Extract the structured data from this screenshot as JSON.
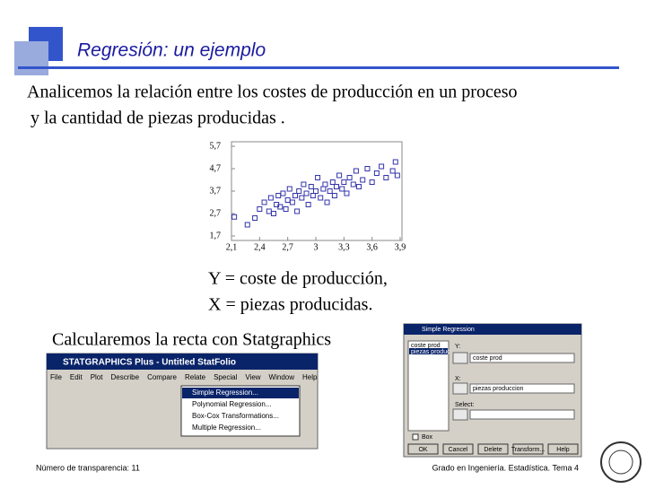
{
  "header": {
    "title": "Regresión: un ejemplo"
  },
  "body": {
    "intro_1": "Analicemos la relación entre los costes de producción en un proceso",
    "intro_2": "y la cantidad de piezas producidas .",
    "y_def": "Y = coste de producción,",
    "x_def": "X = piezas producidas.",
    "calc": "Calcularemos la recta con Statgraphics"
  },
  "chart_data": {
    "type": "scatter",
    "color": "#3333aa",
    "x": [
      2.13,
      2.27,
      2.35,
      2.4,
      2.45,
      2.5,
      2.52,
      2.55,
      2.58,
      2.6,
      2.62,
      2.65,
      2.68,
      2.7,
      2.72,
      2.75,
      2.78,
      2.8,
      2.82,
      2.85,
      2.87,
      2.9,
      2.92,
      2.95,
      2.97,
      3.0,
      3.02,
      3.05,
      3.08,
      3.1,
      3.12,
      3.15,
      3.18,
      3.2,
      3.22,
      3.25,
      3.28,
      3.3,
      3.33,
      3.36,
      3.4,
      3.43,
      3.46,
      3.5,
      3.55,
      3.6,
      3.65,
      3.7,
      3.75,
      3.82,
      3.85,
      3.87
    ],
    "values": [
      2.55,
      2.2,
      2.5,
      2.9,
      3.2,
      2.8,
      3.4,
      2.7,
      3.1,
      3.5,
      3.0,
      3.6,
      2.9,
      3.3,
      3.8,
      3.2,
      3.5,
      2.8,
      3.7,
      3.4,
      4.0,
      3.6,
      3.1,
      3.9,
      3.5,
      3.7,
      4.3,
      3.4,
      3.8,
      4.0,
      3.2,
      3.7,
      4.1,
      3.5,
      3.9,
      4.4,
      3.8,
      4.1,
      3.6,
      4.3,
      4.0,
      4.6,
      3.9,
      4.2,
      4.7,
      4.1,
      4.5,
      4.8,
      4.3,
      4.6,
      5.0,
      4.4
    ],
    "xlim": [
      2.1,
      3.9
    ],
    "ylim": [
      1.7,
      5.7
    ],
    "xticks": [
      {
        "value": 2.1,
        "label": "2,1"
      },
      {
        "value": 2.4,
        "label": "2,4"
      },
      {
        "value": 2.7,
        "label": "2,7"
      },
      3,
      {
        "value": 3.3,
        "label": "3,3"
      },
      {
        "value": 3.6,
        "label": "3,6"
      },
      {
        "value": 3.9,
        "label": "3,9"
      }
    ],
    "yticks": [
      {
        "value": 1.7,
        "label": "1,7"
      },
      {
        "value": 2.7,
        "label": "2,7"
      },
      {
        "value": 3.7,
        "label": "3,7"
      },
      {
        "value": 4.7,
        "label": "4,7"
      },
      {
        "value": 5.7,
        "label": "5,7"
      }
    ]
  },
  "menu_screenshot": {
    "title": "STATGRAPHICS Plus - Untitled StatFolio",
    "menu": [
      "File",
      "Edit",
      "Plot",
      "Describe",
      "Compare",
      "Relate",
      "Special",
      "View",
      "Window",
      "Help"
    ],
    "items": [
      "Simple Regression...",
      "Polynomial Regression...",
      "Box-Cox Transformations...",
      "Multiple Regression..."
    ]
  },
  "dialog_screenshot": {
    "title": "Simple Regression",
    "list": [
      "coste prod",
      "piezas produc"
    ],
    "y_label": "Y:",
    "y_value": "coste prod",
    "x_label": "X:",
    "x_value": "piezas produccion",
    "select_label": "Select:",
    "box_label": "Box",
    "buttons": [
      "OK",
      "Cancel",
      "Delete",
      "Transform...",
      "Help"
    ]
  },
  "footer": {
    "left": "Número de transparencia: 11",
    "right": "Grado en Ingeniería. Estadística. Tema 4"
  }
}
